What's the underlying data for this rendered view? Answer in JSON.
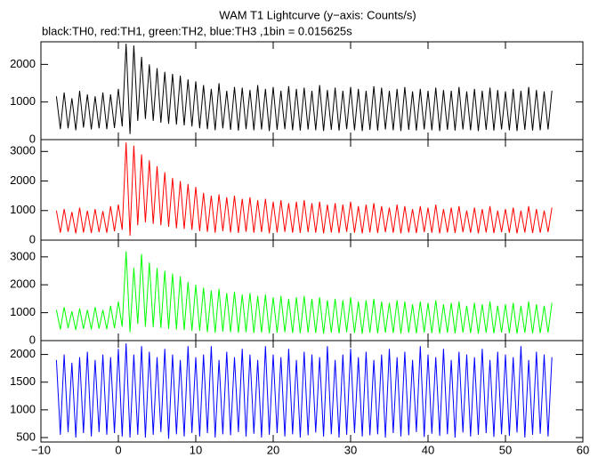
{
  "chart_data": {
    "type": "line",
    "title": "WAM T1 Lightcurve (y−axis: Counts/s)",
    "subtitle": "black:TH0, red:TH1, green:TH2, blue:TH3 ,1bin = 0.015625s",
    "xlim": [
      -10,
      60
    ],
    "xticks": [
      {
        "value": -10,
        "label": "−10"
      },
      0,
      10,
      20,
      30,
      40,
      50,
      60
    ],
    "x": [
      -8,
      -7.5,
      -7,
      -6.5,
      -6,
      -5.5,
      -5,
      -4.5,
      -4,
      -3.5,
      -3,
      -2.5,
      -2,
      -1.5,
      -1,
      -0.5,
      0,
      0.5,
      1,
      1.5,
      2,
      2.5,
      3,
      3.5,
      4,
      4.5,
      5,
      5.5,
      6,
      6.5,
      7,
      7.5,
      8,
      8.5,
      9,
      9.5,
      10,
      10.5,
      11,
      11.5,
      12,
      12.5,
      13,
      13.5,
      14,
      14.5,
      15,
      15.5,
      16,
      16.5,
      17,
      17.5,
      18,
      18.5,
      19,
      19.5,
      20,
      20.5,
      21,
      21.5,
      22,
      22.5,
      23,
      23.5,
      24,
      24.5,
      25,
      25.5,
      26,
      26.5,
      27,
      27.5,
      28,
      28.5,
      29,
      29.5,
      30,
      30.5,
      31,
      31.5,
      32,
      32.5,
      33,
      33.5,
      34,
      34.5,
      35,
      35.5,
      36,
      36.5,
      37,
      37.5,
      38,
      38.5,
      39,
      39.5,
      40,
      40.5,
      41,
      41.5,
      42,
      42.5,
      43,
      43.5,
      44,
      44.5,
      45,
      45.5,
      46,
      46.5,
      47,
      47.5,
      48,
      48.5,
      49,
      49.5,
      50,
      50.5,
      51,
      51.5,
      52,
      52.5,
      53,
      53.5,
      54,
      54.5,
      55,
      55.5,
      56
    ],
    "series": [
      {
        "color": "#000000",
        "ylim": [
          0,
          2600
        ],
        "yticks": [
          0,
          1000,
          2000
        ],
        "values": [
          1150,
          280,
          1250,
          300,
          1100,
          250,
          1300,
          320,
          1200,
          270,
          1150,
          300,
          1250,
          280,
          1200,
          310,
          1350,
          350,
          2550,
          150,
          2500,
          500,
          2200,
          550,
          2000,
          500,
          1900,
          450,
          1800,
          420,
          1750,
          400,
          1700,
          380,
          1600,
          350,
          1550,
          300,
          1450,
          280,
          1350,
          250,
          1500,
          300,
          1300,
          260,
          1400,
          240,
          1380,
          280,
          1320,
          250,
          1450,
          270,
          1350,
          230,
          1400,
          260,
          1300,
          280,
          1420,
          250,
          1350,
          240,
          1380,
          270,
          1300,
          250,
          1450,
          230,
          1320,
          260,
          1380,
          240,
          1300,
          280,
          1400,
          250,
          1350,
          230,
          1300,
          260,
          1420,
          240,
          1380,
          270,
          1300,
          250,
          1350,
          230,
          1400,
          260,
          1280,
          240,
          1350,
          270,
          1300,
          250,
          1380,
          230,
          1320,
          260,
          1300,
          240,
          1400,
          270,
          1280,
          250,
          1350,
          230,
          1300,
          260,
          1380,
          240,
          1320,
          270,
          1280,
          250,
          1350,
          230,
          1300,
          260,
          1400,
          240,
          1320,
          250,
          1280,
          270,
          1300
        ]
      },
      {
        "color": "#ff0000",
        "ylim": [
          0,
          3400
        ],
        "yticks": [
          0,
          1000,
          2000,
          3000
        ],
        "values": [
          1000,
          250,
          1050,
          280,
          950,
          230,
          1100,
          260,
          1000,
          240,
          1050,
          270,
          980,
          250,
          1150,
          300,
          1200,
          350,
          3300,
          150,
          3200,
          500,
          2900,
          600,
          2700,
          550,
          2500,
          500,
          2300,
          450,
          2100,
          400,
          2000,
          380,
          1900,
          350,
          1800,
          300,
          1600,
          280,
          1500,
          250,
          1550,
          300,
          1450,
          260,
          1500,
          240,
          1400,
          280,
          1450,
          250,
          1350,
          270,
          1400,
          230,
          1300,
          260,
          1350,
          280,
          1250,
          250,
          1300,
          240,
          1350,
          270,
          1250,
          250,
          1300,
          230,
          1200,
          260,
          1250,
          240,
          1200,
          280,
          1300,
          250,
          1150,
          230,
          1200,
          260,
          1250,
          240,
          1150,
          270,
          1100,
          250,
          1200,
          230,
          1150,
          260,
          1050,
          240,
          1150,
          270,
          1100,
          250,
          1200,
          230,
          1050,
          260,
          1100,
          240,
          1150,
          270,
          1000,
          250,
          1100,
          230,
          1050,
          260,
          1150,
          240,
          1000,
          270,
          1050,
          250,
          1100,
          230,
          1000,
          260,
          1150,
          240,
          1050,
          250,
          1000,
          270,
          1100
        ]
      },
      {
        "color": "#00ff00",
        "ylim": [
          0,
          3600
        ],
        "yticks": [
          0,
          1000,
          2000,
          3000
        ],
        "values": [
          1100,
          400,
          1200,
          450,
          1050,
          380,
          1150,
          420,
          1100,
          400,
          1200,
          430,
          1100,
          410,
          1250,
          450,
          1400,
          500,
          3200,
          300,
          2600,
          600,
          3100,
          500,
          2800,
          480,
          2600,
          450,
          2500,
          420,
          2400,
          400,
          2300,
          380,
          2100,
          350,
          2000,
          350,
          1900,
          300,
          1800,
          280,
          1850,
          320,
          1700,
          300,
          1750,
          280,
          1650,
          300,
          1700,
          270,
          1600,
          290,
          1650,
          260,
          1550,
          280,
          1600,
          300,
          1500,
          270,
          1550,
          260,
          1600,
          290,
          1500,
          270,
          1550,
          250,
          1450,
          280,
          1500,
          260,
          1450,
          300,
          1550,
          270,
          1400,
          250,
          1450,
          280,
          1500,
          260,
          1400,
          290,
          1350,
          270,
          1450,
          250,
          1400,
          280,
          1300,
          260,
          1400,
          290,
          1350,
          270,
          1450,
          250,
          1300,
          280,
          1350,
          260,
          1400,
          290,
          1250,
          270,
          1350,
          250,
          1300,
          280,
          1400,
          260,
          1250,
          290,
          1300,
          270,
          1350,
          250,
          1250,
          280,
          1400,
          260,
          1300,
          270,
          1250,
          290,
          1350
        ]
      },
      {
        "color": "#0000ff",
        "ylim": [
          420,
          2250
        ],
        "yticks": [
          500,
          1000,
          1500,
          2000
        ],
        "values": [
          1900,
          550,
          2000,
          600,
          1850,
          500,
          1950,
          580,
          2050,
          520,
          1900,
          600,
          2000,
          550,
          1950,
          580,
          2100,
          520,
          2200,
          500,
          2000,
          550,
          2150,
          500,
          2050,
          550,
          1950,
          600,
          2100,
          480,
          2000,
          560,
          1900,
          520,
          2150,
          580,
          1950,
          520,
          2000,
          580,
          2150,
          500,
          1900,
          560,
          2050,
          540,
          1950,
          600,
          2100,
          520,
          2000,
          570,
          1900,
          500,
          2150,
          550,
          2000,
          580,
          1950,
          520,
          2100,
          560,
          1900,
          500,
          2050,
          540,
          2000,
          590,
          1950,
          520,
          2150,
          560,
          1900,
          500,
          2000,
          550,
          2100,
          580,
          1950,
          520,
          2050,
          540,
          1900,
          560,
          2000,
          500,
          2100,
          580,
          1950,
          520,
          2050,
          540,
          1900,
          600,
          2150,
          510,
          2000,
          570,
          1950,
          530,
          2100,
          560,
          1900,
          500,
          2050,
          590,
          2000,
          520,
          1950,
          550,
          2100,
          580,
          1900,
          510,
          2050,
          560,
          2000,
          530,
          1950,
          590,
          2150,
          500,
          1900,
          550,
          2050,
          570,
          2000,
          520,
          1950
        ]
      }
    ]
  }
}
